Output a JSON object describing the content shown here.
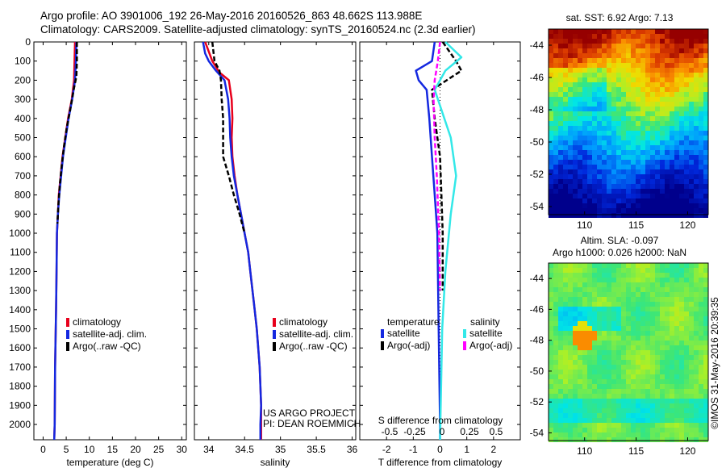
{
  "header": {
    "line1": "Argo profile: AO 3901006_192 26-May-2016 20160526_863 48.662S 113.988E",
    "line2": "Climatology: CARS2009. Satellite-adjusted climatology: synTS_20160524.nc (2.3d earlier)"
  },
  "colors": {
    "climatology": "#e8001c",
    "satellite": "#1428e0",
    "argo": "#000000",
    "sat_salinity": "#33e8e8",
    "argo_adj": "#ff00ff"
  },
  "chart_data": [
    {
      "id": "temperature",
      "type": "line",
      "xlabel": "temperature (deg C)",
      "ylabel": "",
      "xlim": [
        -2,
        31
      ],
      "ylim": [
        2080,
        0
      ],
      "xticks": [
        0,
        5,
        10,
        15,
        20,
        25,
        30
      ],
      "yticks": [
        0,
        100,
        200,
        300,
        400,
        500,
        600,
        700,
        800,
        900,
        1000,
        1100,
        1200,
        1300,
        1400,
        1500,
        1600,
        1700,
        1800,
        1900,
        2000
      ],
      "legend": [
        "climatology",
        "satellite-adj. clim.",
        "Argo(..raw -QC)"
      ],
      "series": [
        {
          "name": "climatology",
          "color": "climatology",
          "style": "solid",
          "points": [
            [
              6.9,
              0
            ],
            [
              6.8,
              100
            ],
            [
              6.7,
              200
            ],
            [
              6.2,
              300
            ],
            [
              5.4,
              400
            ],
            [
              4.8,
              500
            ],
            [
              4.2,
              600
            ],
            [
              3.8,
              700
            ],
            [
              3.4,
              800
            ],
            [
              3.2,
              900
            ],
            [
              3.0,
              1000
            ],
            [
              2.9,
              1200
            ],
            [
              2.8,
              1400
            ],
            [
              2.6,
              1700
            ],
            [
              2.5,
              2000
            ],
            [
              2.4,
              2080
            ]
          ]
        },
        {
          "name": "satellite-adj. clim.",
          "color": "satellite",
          "style": "solid",
          "points": [
            [
              7.2,
              0
            ],
            [
              7.1,
              100
            ],
            [
              6.9,
              200
            ],
            [
              6.3,
              300
            ],
            [
              5.5,
              400
            ],
            [
              4.9,
              500
            ],
            [
              4.3,
              600
            ],
            [
              3.9,
              700
            ],
            [
              3.5,
              800
            ],
            [
              3.2,
              900
            ],
            [
              3.0,
              1000
            ],
            [
              2.9,
              1200
            ],
            [
              2.8,
              1400
            ],
            [
              2.6,
              1700
            ],
            [
              2.5,
              2000
            ],
            [
              2.4,
              2080
            ]
          ]
        },
        {
          "name": "Argo(..raw -QC)",
          "color": "argo",
          "style": "dashed",
          "points": [
            [
              7.3,
              0
            ],
            [
              7.3,
              100
            ],
            [
              7.2,
              180
            ],
            [
              6.6,
              250
            ],
            [
              5.9,
              350
            ],
            [
              5.1,
              450
            ],
            [
              4.5,
              550
            ],
            [
              4.0,
              650
            ],
            [
              3.6,
              750
            ],
            [
              3.3,
              850
            ],
            [
              3.1,
              950
            ]
          ]
        }
      ]
    },
    {
      "id": "salinity",
      "type": "line",
      "xlabel": "salinity",
      "ylabel": "",
      "xlim": [
        33.8,
        36.05
      ],
      "ylim": [
        2080,
        0
      ],
      "xticks": [
        34,
        34.5,
        35,
        35.5,
        36
      ],
      "legend": [
        "climatology",
        "satellite-adj. clim.",
        "Argo(..raw -QC)"
      ],
      "annotation": [
        "US ARGO PROJECT",
        "PI: DEAN ROEMMICH"
      ],
      "series": [
        {
          "name": "climatology",
          "color": "climatology",
          "style": "solid",
          "points": [
            [
              33.95,
              0
            ],
            [
              34.05,
              100
            ],
            [
              34.15,
              160
            ],
            [
              34.28,
              200
            ],
            [
              34.32,
              300
            ],
            [
              34.33,
              400
            ],
            [
              34.32,
              500
            ],
            [
              34.33,
              600
            ],
            [
              34.36,
              700
            ],
            [
              34.4,
              800
            ],
            [
              34.45,
              900
            ],
            [
              34.5,
              1000
            ],
            [
              34.55,
              1100
            ],
            [
              34.58,
              1200
            ],
            [
              34.61,
              1300
            ],
            [
              34.64,
              1400
            ],
            [
              34.67,
              1500
            ],
            [
              34.69,
              1600
            ],
            [
              34.71,
              1700
            ],
            [
              34.72,
              1800
            ],
            [
              34.73,
              1900
            ],
            [
              34.73,
              2000
            ],
            [
              34.73,
              2080
            ]
          ]
        },
        {
          "name": "satellite-adj. clim.",
          "color": "satellite",
          "style": "solid",
          "points": [
            [
              33.92,
              0
            ],
            [
              33.95,
              60
            ],
            [
              34.0,
              100
            ],
            [
              34.1,
              150
            ],
            [
              34.22,
              200
            ],
            [
              34.27,
              300
            ],
            [
              34.29,
              400
            ],
            [
              34.3,
              500
            ],
            [
              34.32,
              600
            ],
            [
              34.35,
              700
            ],
            [
              34.4,
              800
            ],
            [
              34.45,
              900
            ],
            [
              34.5,
              1000
            ],
            [
              34.55,
              1100
            ],
            [
              34.58,
              1200
            ],
            [
              34.61,
              1300
            ],
            [
              34.64,
              1400
            ],
            [
              34.67,
              1500
            ],
            [
              34.69,
              1600
            ],
            [
              34.71,
              1700
            ],
            [
              34.72,
              1800
            ],
            [
              34.73,
              1900
            ],
            [
              34.72,
              2000
            ],
            [
              34.72,
              2080
            ]
          ]
        },
        {
          "name": "Argo(..raw -QC)",
          "color": "argo",
          "style": "dashed",
          "points": [
            [
              34.05,
              0
            ],
            [
              34.08,
              100
            ],
            [
              34.15,
              150
            ],
            [
              34.17,
              200
            ],
            [
              34.18,
              300
            ],
            [
              34.2,
              400
            ],
            [
              34.2,
              500
            ],
            [
              34.2,
              600
            ],
            [
              34.28,
              700
            ],
            [
              34.35,
              800
            ],
            [
              34.43,
              900
            ],
            [
              34.5,
              1000
            ]
          ]
        }
      ]
    },
    {
      "id": "difference",
      "type": "line",
      "xlabel": "T difference from climatology",
      "ylabel": "",
      "xlim": [
        -3,
        3
      ],
      "ylim": [
        2080,
        0
      ],
      "xticks": [
        -2,
        -1,
        0,
        1,
        2
      ],
      "top_axis_label": "S difference from climatology",
      "top_xticks": [
        "-0.5",
        "-0.25",
        "0",
        "0.25",
        "0.5"
      ],
      "legend_headers": [
        "temperature",
        "salinity"
      ],
      "legend": [
        "satellite",
        "Argo(-adj)",
        "satellite",
        "Argo(-adj)"
      ],
      "series": [
        {
          "name": "satellite",
          "color": "satellite",
          "style": "solid",
          "quantity": "T",
          "points": [
            [
              -0.2,
              0
            ],
            [
              -0.3,
              100
            ],
            [
              -0.9,
              150
            ],
            [
              -0.8,
              200
            ],
            [
              -0.5,
              250
            ],
            [
              -0.4,
              400
            ],
            [
              -0.3,
              600
            ],
            [
              -0.2,
              800
            ],
            [
              -0.1,
              1000
            ],
            [
              -0.05,
              1500
            ],
            [
              0,
              2000
            ],
            [
              0,
              2080
            ]
          ]
        },
        {
          "name": "Argo(-adj)",
          "color": "argo",
          "style": "dashed",
          "quantity": "T",
          "points": [
            [
              0.1,
              0
            ],
            [
              0.6,
              100
            ],
            [
              0.8,
              150
            ],
            [
              -0.3,
              250
            ],
            [
              -0.2,
              400
            ],
            [
              0.0,
              600
            ],
            [
              0.05,
              800
            ],
            [
              0.1,
              1000
            ],
            [
              0.1,
              1300
            ]
          ]
        },
        {
          "name": "satellite",
          "color": "sat_salinity",
          "style": "solid",
          "quantity": "S",
          "points": [
            [
              0.05,
              0
            ],
            [
              0.2,
              80
            ],
            [
              0.05,
              150
            ],
            [
              -0.05,
              250
            ],
            [
              0.1,
              500
            ],
            [
              0.15,
              700
            ],
            [
              0.1,
              900
            ],
            [
              0.05,
              1200
            ],
            [
              0.02,
              1500
            ],
            [
              0.0,
              2080
            ]
          ]
        },
        {
          "name": "Argo(-adj)",
          "color": "argo_adj",
          "style": "dashed",
          "quantity": "S",
          "points": [
            [
              0.0,
              0
            ],
            [
              -0.02,
              100
            ],
            [
              -0.05,
              200
            ],
            [
              -0.06,
              300
            ],
            [
              -0.05,
              500
            ],
            [
              -0.03,
              700
            ],
            [
              -0.01,
              1000
            ],
            [
              0.0,
              1300
            ]
          ]
        }
      ]
    },
    {
      "id": "sst_map",
      "type": "heatmap",
      "title": "sat. SST: 6.92  Argo: 7.13",
      "xticks": [
        110,
        115,
        120
      ],
      "yticks": [
        -44,
        -46,
        -48,
        -50,
        -52,
        -54
      ],
      "xlim": [
        106.5,
        122
      ],
      "ylim": [
        -54.5,
        -43
      ]
    },
    {
      "id": "sla_map",
      "type": "heatmap",
      "title": [
        "Altim. SLA: -0.097",
        "Argo h1000: 0.026 h2000: NaN"
      ],
      "xticks": [
        110,
        115,
        120
      ],
      "yticks": [
        -44,
        -46,
        -48,
        -50,
        -52,
        -54
      ],
      "xlim": [
        106.5,
        122
      ],
      "ylim": [
        -54.5,
        -43
      ]
    }
  ],
  "footer": {
    "credit": "©IMOS 31-May-2016 20:39:35"
  }
}
